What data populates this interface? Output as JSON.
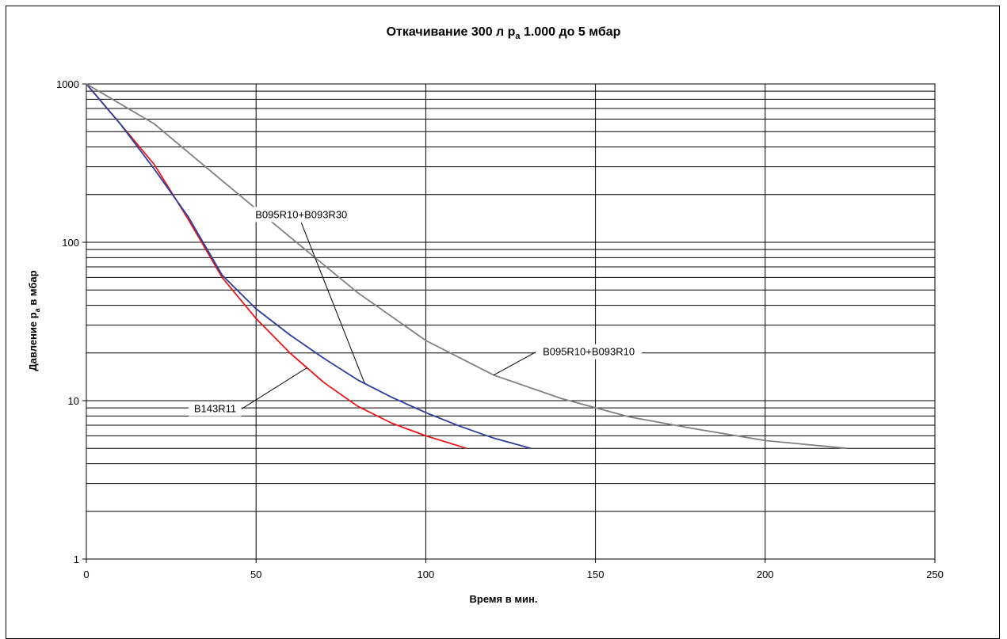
{
  "chart_data": {
    "type": "line",
    "title": {
      "before": "Откачивание 300 л p",
      "sub": "a",
      "after": " 1.000 до 5 мбар"
    },
    "xlabel": "Время в мин.",
    "ylabel": {
      "before": "Давление p",
      "sub": "a",
      "after": " в мбар"
    },
    "x_ticks": [
      "0",
      "50",
      "100",
      "150",
      "200",
      "250"
    ],
    "y_ticks": [
      "1",
      "10",
      "100",
      "1000"
    ],
    "xlim": [
      0,
      250
    ],
    "ylim": [
      1,
      1000
    ],
    "y_scale": "log",
    "grid": true,
    "series": [
      {
        "name": "B143R11",
        "color": "#e8161b",
        "x": [
          0,
          10,
          20,
          30,
          40,
          50,
          60,
          70,
          80,
          90,
          100,
          112
        ],
        "y": [
          1000,
          560,
          310,
          140,
          60,
          33,
          20,
          13,
          9.2,
          7.2,
          6,
          5
        ]
      },
      {
        "name": "B095R10+B093R30",
        "color": "#2b3e9b",
        "x": [
          0,
          10,
          20,
          30,
          40,
          50,
          60,
          70,
          80,
          90,
          100,
          110,
          120,
          131
        ],
        "y": [
          1000,
          560,
          290,
          145,
          62,
          38,
          26,
          18.5,
          13.5,
          10.5,
          8.4,
          6.9,
          5.8,
          5
        ]
      },
      {
        "name": "B095R10+B093R10",
        "color": "#808080",
        "x": [
          0,
          20,
          40,
          60,
          80,
          100,
          120,
          140,
          160,
          180,
          200,
          224
        ],
        "y": [
          1000,
          560,
          245,
          108,
          48,
          24,
          14.5,
          10.3,
          7.9,
          6.6,
          5.6,
          5
        ]
      }
    ],
    "annotations": [
      {
        "text": "B095R10+B093R30",
        "series": "B095R10+B093R30",
        "at_x": 82
      },
      {
        "text": "B095R10+B093R10",
        "series": "B095R10+B093R10",
        "at_x": 120
      },
      {
        "text": "B143R11",
        "series": "B143R11",
        "at_x": 65
      }
    ]
  }
}
